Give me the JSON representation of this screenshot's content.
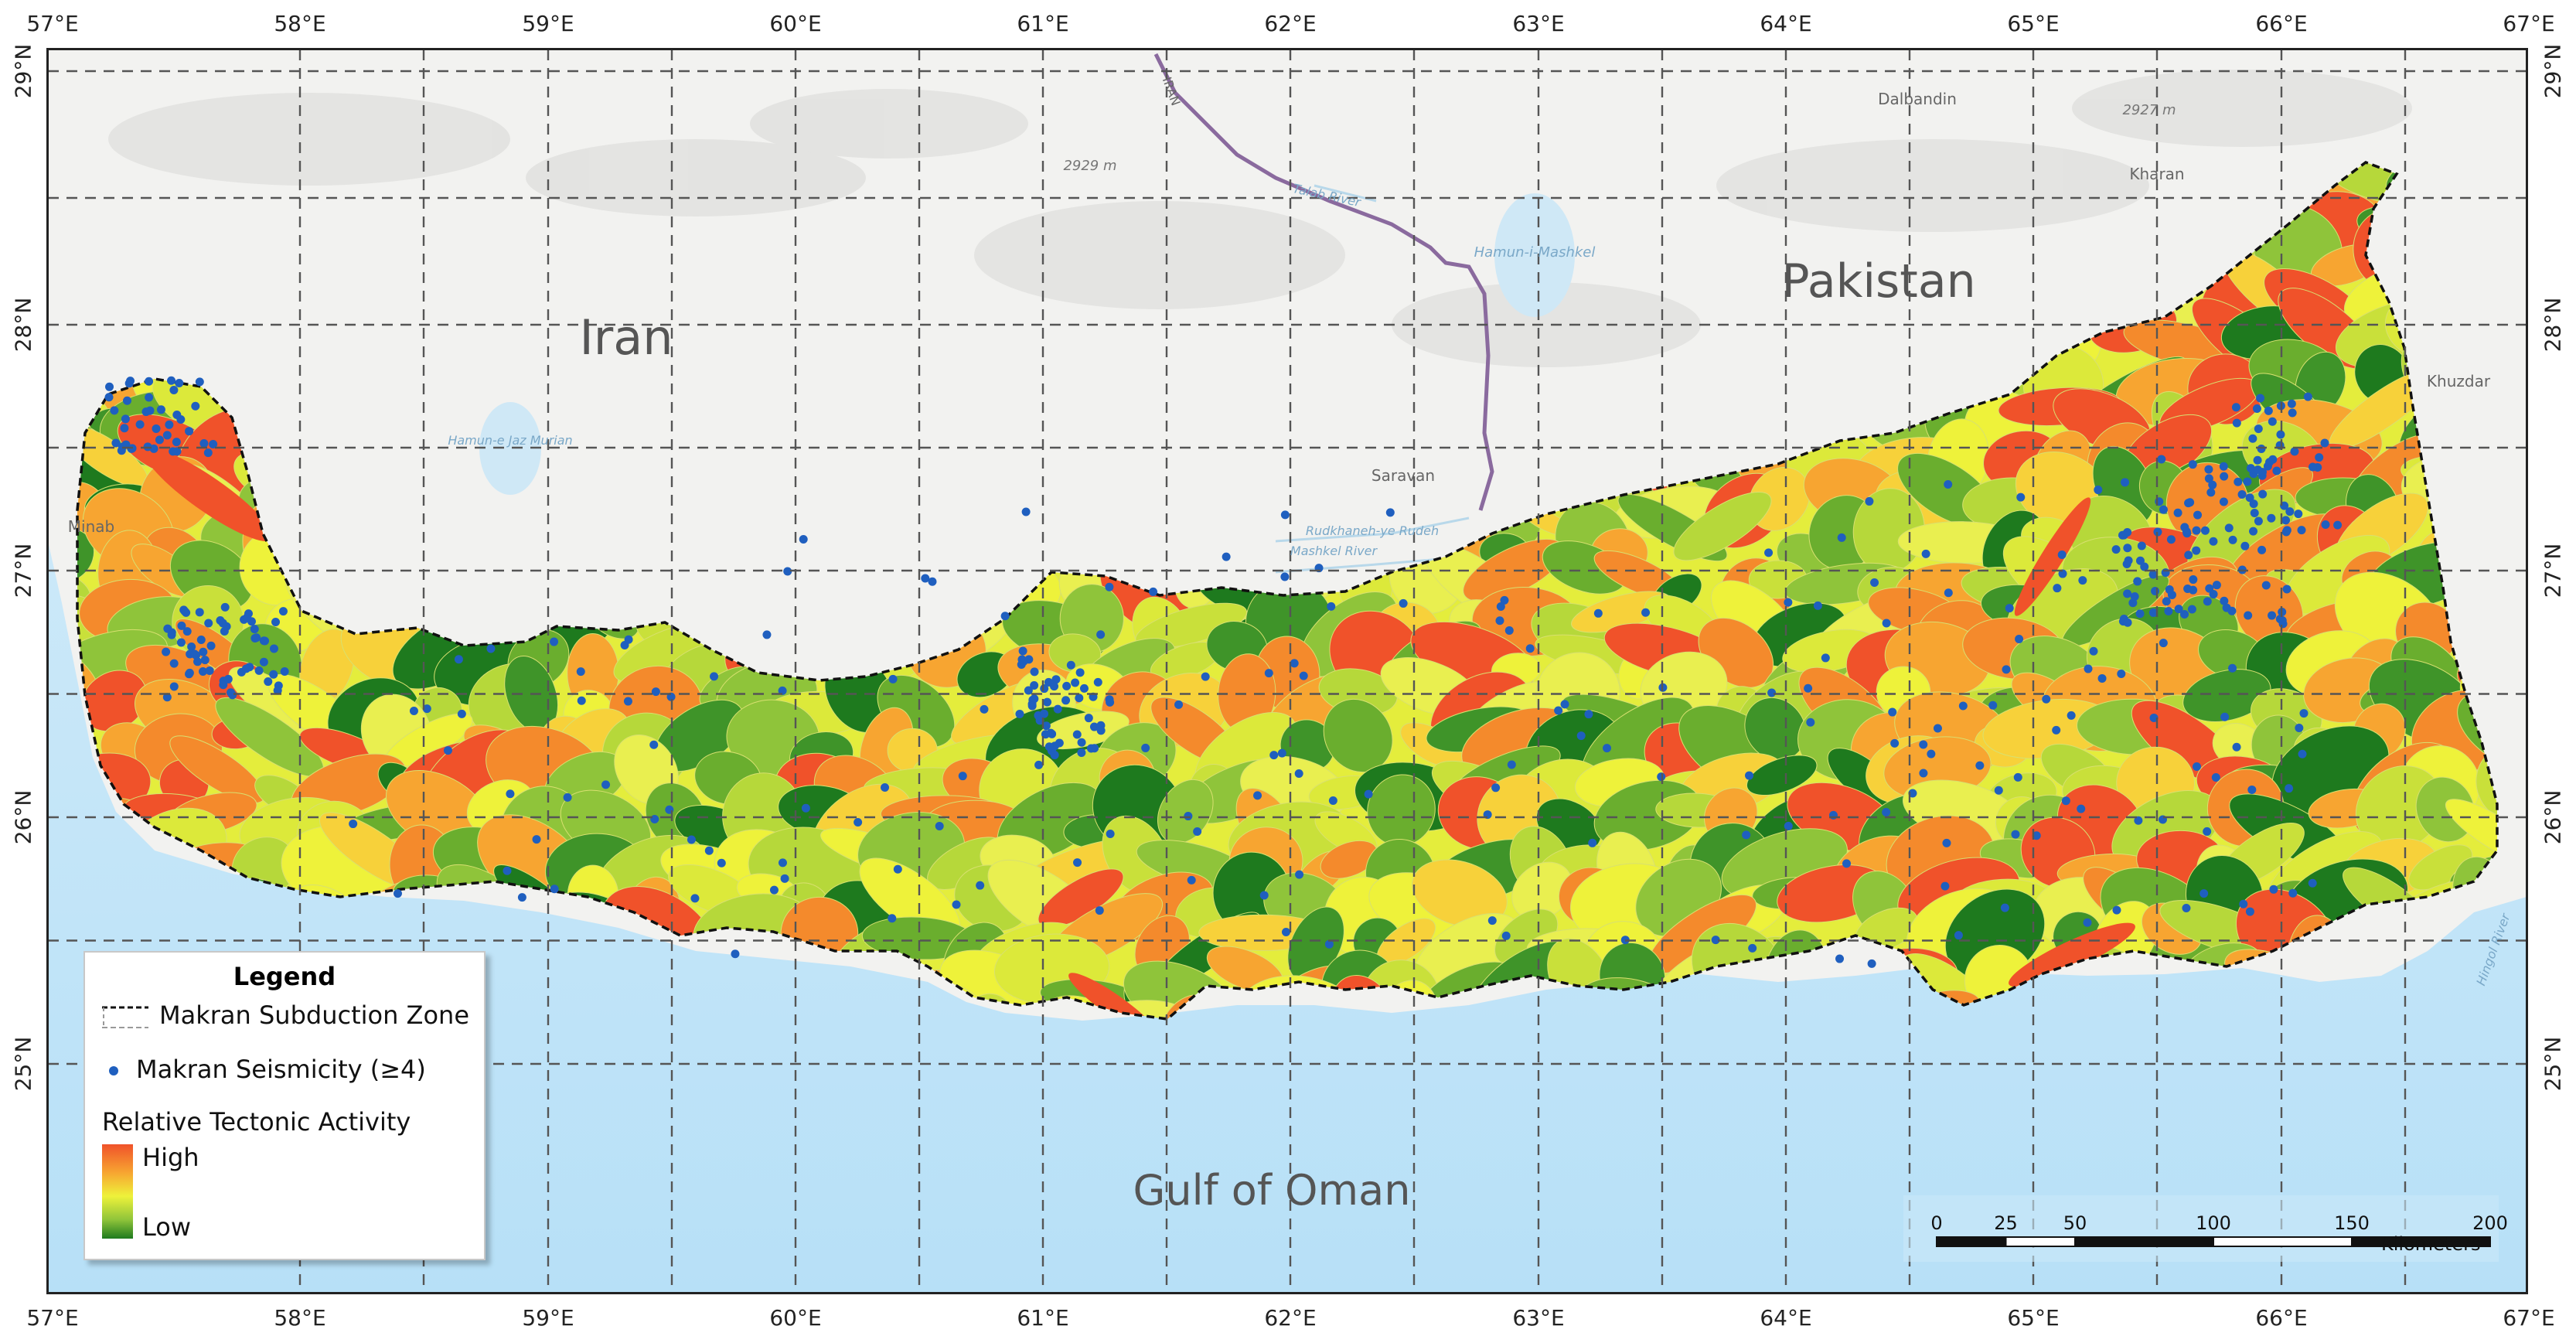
{
  "map": {
    "top_ticks": [
      "57°E",
      "58°E",
      "59°E",
      "60°E",
      "61°E",
      "62°E",
      "63°E",
      "64°E",
      "65°E",
      "66°E",
      "67°E"
    ],
    "bottom_ticks": [
      "57°E",
      "58°E",
      "59°E",
      "60°E",
      "61°E",
      "62°E",
      "63°E",
      "64°E",
      "65°E",
      "66°E",
      "67°E"
    ],
    "left_ticks": [
      "29°N",
      "28°N",
      "27°N",
      "26°N",
      "25°N"
    ],
    "right_ticks": [
      "29°N",
      "28°N",
      "27°N",
      "26°N",
      "25°N"
    ],
    "country_labels": [
      "Iran",
      "Pakistan"
    ],
    "water_label": "Gulf of Oman",
    "place_labels": [
      "Dalbandin",
      "Kharan",
      "Khuzdar",
      "Saravan",
      "Minab",
      "Hamun-i-Mashkel",
      "Hamun-e Jaz Murian",
      "2929 m",
      "2927 m",
      "Talab River",
      "Rudkhaneh-ye Rudeh",
      "Mashkel River",
      "Hingol River",
      "IRAN"
    ],
    "colors": {
      "water": "#c9e8f8",
      "land": "#f2f2f2",
      "high": "#f0522a",
      "low": "#1e7a1e",
      "seismicity": "#1f5fbf",
      "border": "#8a6a9e"
    }
  },
  "legend": {
    "title": "Legend",
    "zone_label": "Makran Subduction Zone",
    "seismicity_label": "Makran Seismicity (≥4)",
    "activity_title": "Relative Tectonic Activity",
    "high_label": "High",
    "low_label": "Low"
  },
  "scale_bar": {
    "tick_labels": [
      "0",
      "25",
      "50",
      "100",
      "150",
      "200"
    ],
    "unit": "Kilometers"
  }
}
